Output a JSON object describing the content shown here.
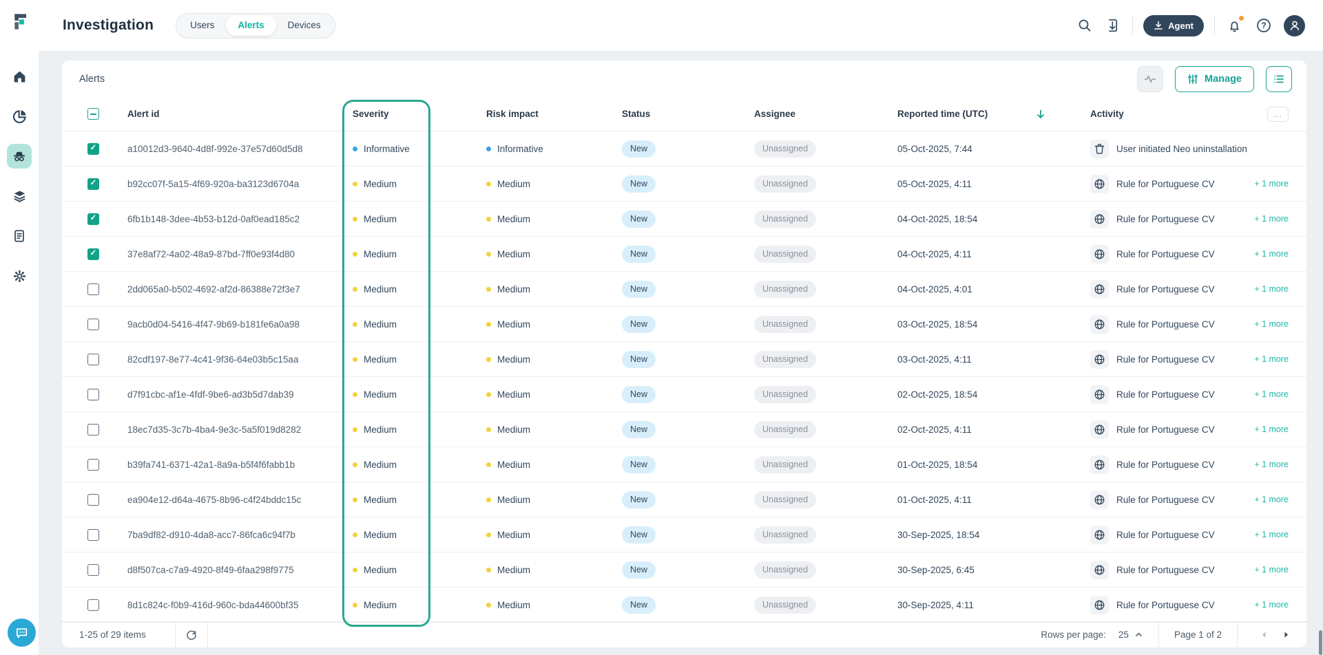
{
  "app": {
    "page_title": "Investigation",
    "tabs": [
      {
        "label": "Users",
        "active": false
      },
      {
        "label": "Alerts",
        "active": true
      },
      {
        "label": "Devices",
        "active": false
      }
    ],
    "agent_button_label": "Agent"
  },
  "panel": {
    "title": "Alerts",
    "manage_button_label": "Manage"
  },
  "table": {
    "headers": {
      "alert_id": "Alert id",
      "severity": "Severity",
      "risk_impact": "Risk impact",
      "status": "Status",
      "assignee": "Assignee",
      "reported_time": "Reported time (UTC)",
      "activity": "Activity",
      "more_menu": "…"
    },
    "rows": [
      {
        "checked": true,
        "alert_id": "a10012d3-9640-4d8f-992e-37e57d60d5d8",
        "severity": "Informative",
        "risk_impact": "Informative",
        "status": "New",
        "assignee": "Unassigned",
        "reported_time": "05-Oct-2025, 7:44",
        "activity_icon": "trash",
        "activity_text": "User initiated Neo uninstallation",
        "more": ""
      },
      {
        "checked": true,
        "alert_id": "b92cc07f-5a15-4f69-920a-ba3123d6704a",
        "severity": "Medium",
        "risk_impact": "Medium",
        "status": "New",
        "assignee": "Unassigned",
        "reported_time": "05-Oct-2025, 4:11",
        "activity_icon": "globe",
        "activity_text": "Rule for Portuguese CV",
        "more": "+ 1 more"
      },
      {
        "checked": true,
        "alert_id": "6fb1b148-3dee-4b53-b12d-0af0ead185c2",
        "severity": "Medium",
        "risk_impact": "Medium",
        "status": "New",
        "assignee": "Unassigned",
        "reported_time": "04-Oct-2025, 18:54",
        "activity_icon": "globe",
        "activity_text": "Rule for Portuguese CV",
        "more": "+ 1 more"
      },
      {
        "checked": true,
        "alert_id": "37e8af72-4a02-48a9-87bd-7ff0e93f4d80",
        "severity": "Medium",
        "risk_impact": "Medium",
        "status": "New",
        "assignee": "Unassigned",
        "reported_time": "04-Oct-2025, 4:11",
        "activity_icon": "globe",
        "activity_text": "Rule for Portuguese CV",
        "more": "+ 1 more"
      },
      {
        "checked": false,
        "alert_id": "2dd065a0-b502-4692-af2d-86388e72f3e7",
        "severity": "Medium",
        "risk_impact": "Medium",
        "status": "New",
        "assignee": "Unassigned",
        "reported_time": "04-Oct-2025, 4:01",
        "activity_icon": "globe",
        "activity_text": "Rule for Portuguese CV",
        "more": "+ 1 more"
      },
      {
        "checked": false,
        "alert_id": "9acb0d04-5416-4f47-9b69-b181fe6a0a98",
        "severity": "Medium",
        "risk_impact": "Medium",
        "status": "New",
        "assignee": "Unassigned",
        "reported_time": "03-Oct-2025, 18:54",
        "activity_icon": "globe",
        "activity_text": "Rule for Portuguese CV",
        "more": "+ 1 more"
      },
      {
        "checked": false,
        "alert_id": "82cdf197-8e77-4c41-9f36-64e03b5c15aa",
        "severity": "Medium",
        "risk_impact": "Medium",
        "status": "New",
        "assignee": "Unassigned",
        "reported_time": "03-Oct-2025, 4:11",
        "activity_icon": "globe",
        "activity_text": "Rule for Portuguese CV",
        "more": "+ 1 more"
      },
      {
        "checked": false,
        "alert_id": "d7f91cbc-af1e-4fdf-9be6-ad3b5d7dab39",
        "severity": "Medium",
        "risk_impact": "Medium",
        "status": "New",
        "assignee": "Unassigned",
        "reported_time": "02-Oct-2025, 18:54",
        "activity_icon": "globe",
        "activity_text": "Rule for Portuguese CV",
        "more": "+ 1 more"
      },
      {
        "checked": false,
        "alert_id": "18ec7d35-3c7b-4ba4-9e3c-5a5f019d8282",
        "severity": "Medium",
        "risk_impact": "Medium",
        "status": "New",
        "assignee": "Unassigned",
        "reported_time": "02-Oct-2025, 4:11",
        "activity_icon": "globe",
        "activity_text": "Rule for Portuguese CV",
        "more": "+ 1 more"
      },
      {
        "checked": false,
        "alert_id": "b39fa741-6371-42a1-8a9a-b5f4f6fabb1b",
        "severity": "Medium",
        "risk_impact": "Medium",
        "status": "New",
        "assignee": "Unassigned",
        "reported_time": "01-Oct-2025, 18:54",
        "activity_icon": "globe",
        "activity_text": "Rule for Portuguese CV",
        "more": "+ 1 more"
      },
      {
        "checked": false,
        "alert_id": "ea904e12-d64a-4675-8b96-c4f24bddc15c",
        "severity": "Medium",
        "risk_impact": "Medium",
        "status": "New",
        "assignee": "Unassigned",
        "reported_time": "01-Oct-2025, 4:11",
        "activity_icon": "globe",
        "activity_text": "Rule for Portuguese CV",
        "more": "+ 1 more"
      },
      {
        "checked": false,
        "alert_id": "7ba9df82-d910-4da8-acc7-86fca6c94f7b",
        "severity": "Medium",
        "risk_impact": "Medium",
        "status": "New",
        "assignee": "Unassigned",
        "reported_time": "30-Sep-2025, 18:54",
        "activity_icon": "globe",
        "activity_text": "Rule for Portuguese CV",
        "more": "+ 1 more"
      },
      {
        "checked": false,
        "alert_id": "d8f507ca-c7a9-4920-8f49-6faa298f9775",
        "severity": "Medium",
        "risk_impact": "Medium",
        "status": "New",
        "assignee": "Unassigned",
        "reported_time": "30-Sep-2025, 6:45",
        "activity_icon": "globe",
        "activity_text": "Rule for Portuguese CV",
        "more": "+ 1 more"
      },
      {
        "checked": false,
        "alert_id": "8d1c824c-f0b9-416d-960c-bda44600bf35",
        "severity": "Medium",
        "risk_impact": "Medium",
        "status": "New",
        "assignee": "Unassigned",
        "reported_time": "30-Sep-2025, 4:11",
        "activity_icon": "globe",
        "activity_text": "Rule for Portuguese CV",
        "more": "+ 1 more"
      }
    ]
  },
  "pagination": {
    "items_summary": "1-25 of 29 items",
    "rows_per_page_label": "Rows per page:",
    "rows_per_page_value": "25",
    "page_indicator": "Page 1 of 2"
  },
  "colors": {
    "accent_teal": "#16a394",
    "severity_highlight_border": "#28a88f",
    "informative_dot": "#3aa3e6",
    "medium_dot": "#f2d23d",
    "status_new_bg": "#d8effb",
    "checked_checkbox": "#12a287",
    "notification_badge": "#f59f2d",
    "chat_fab": "#2ba9d6",
    "dark_slate": "#33475b"
  }
}
